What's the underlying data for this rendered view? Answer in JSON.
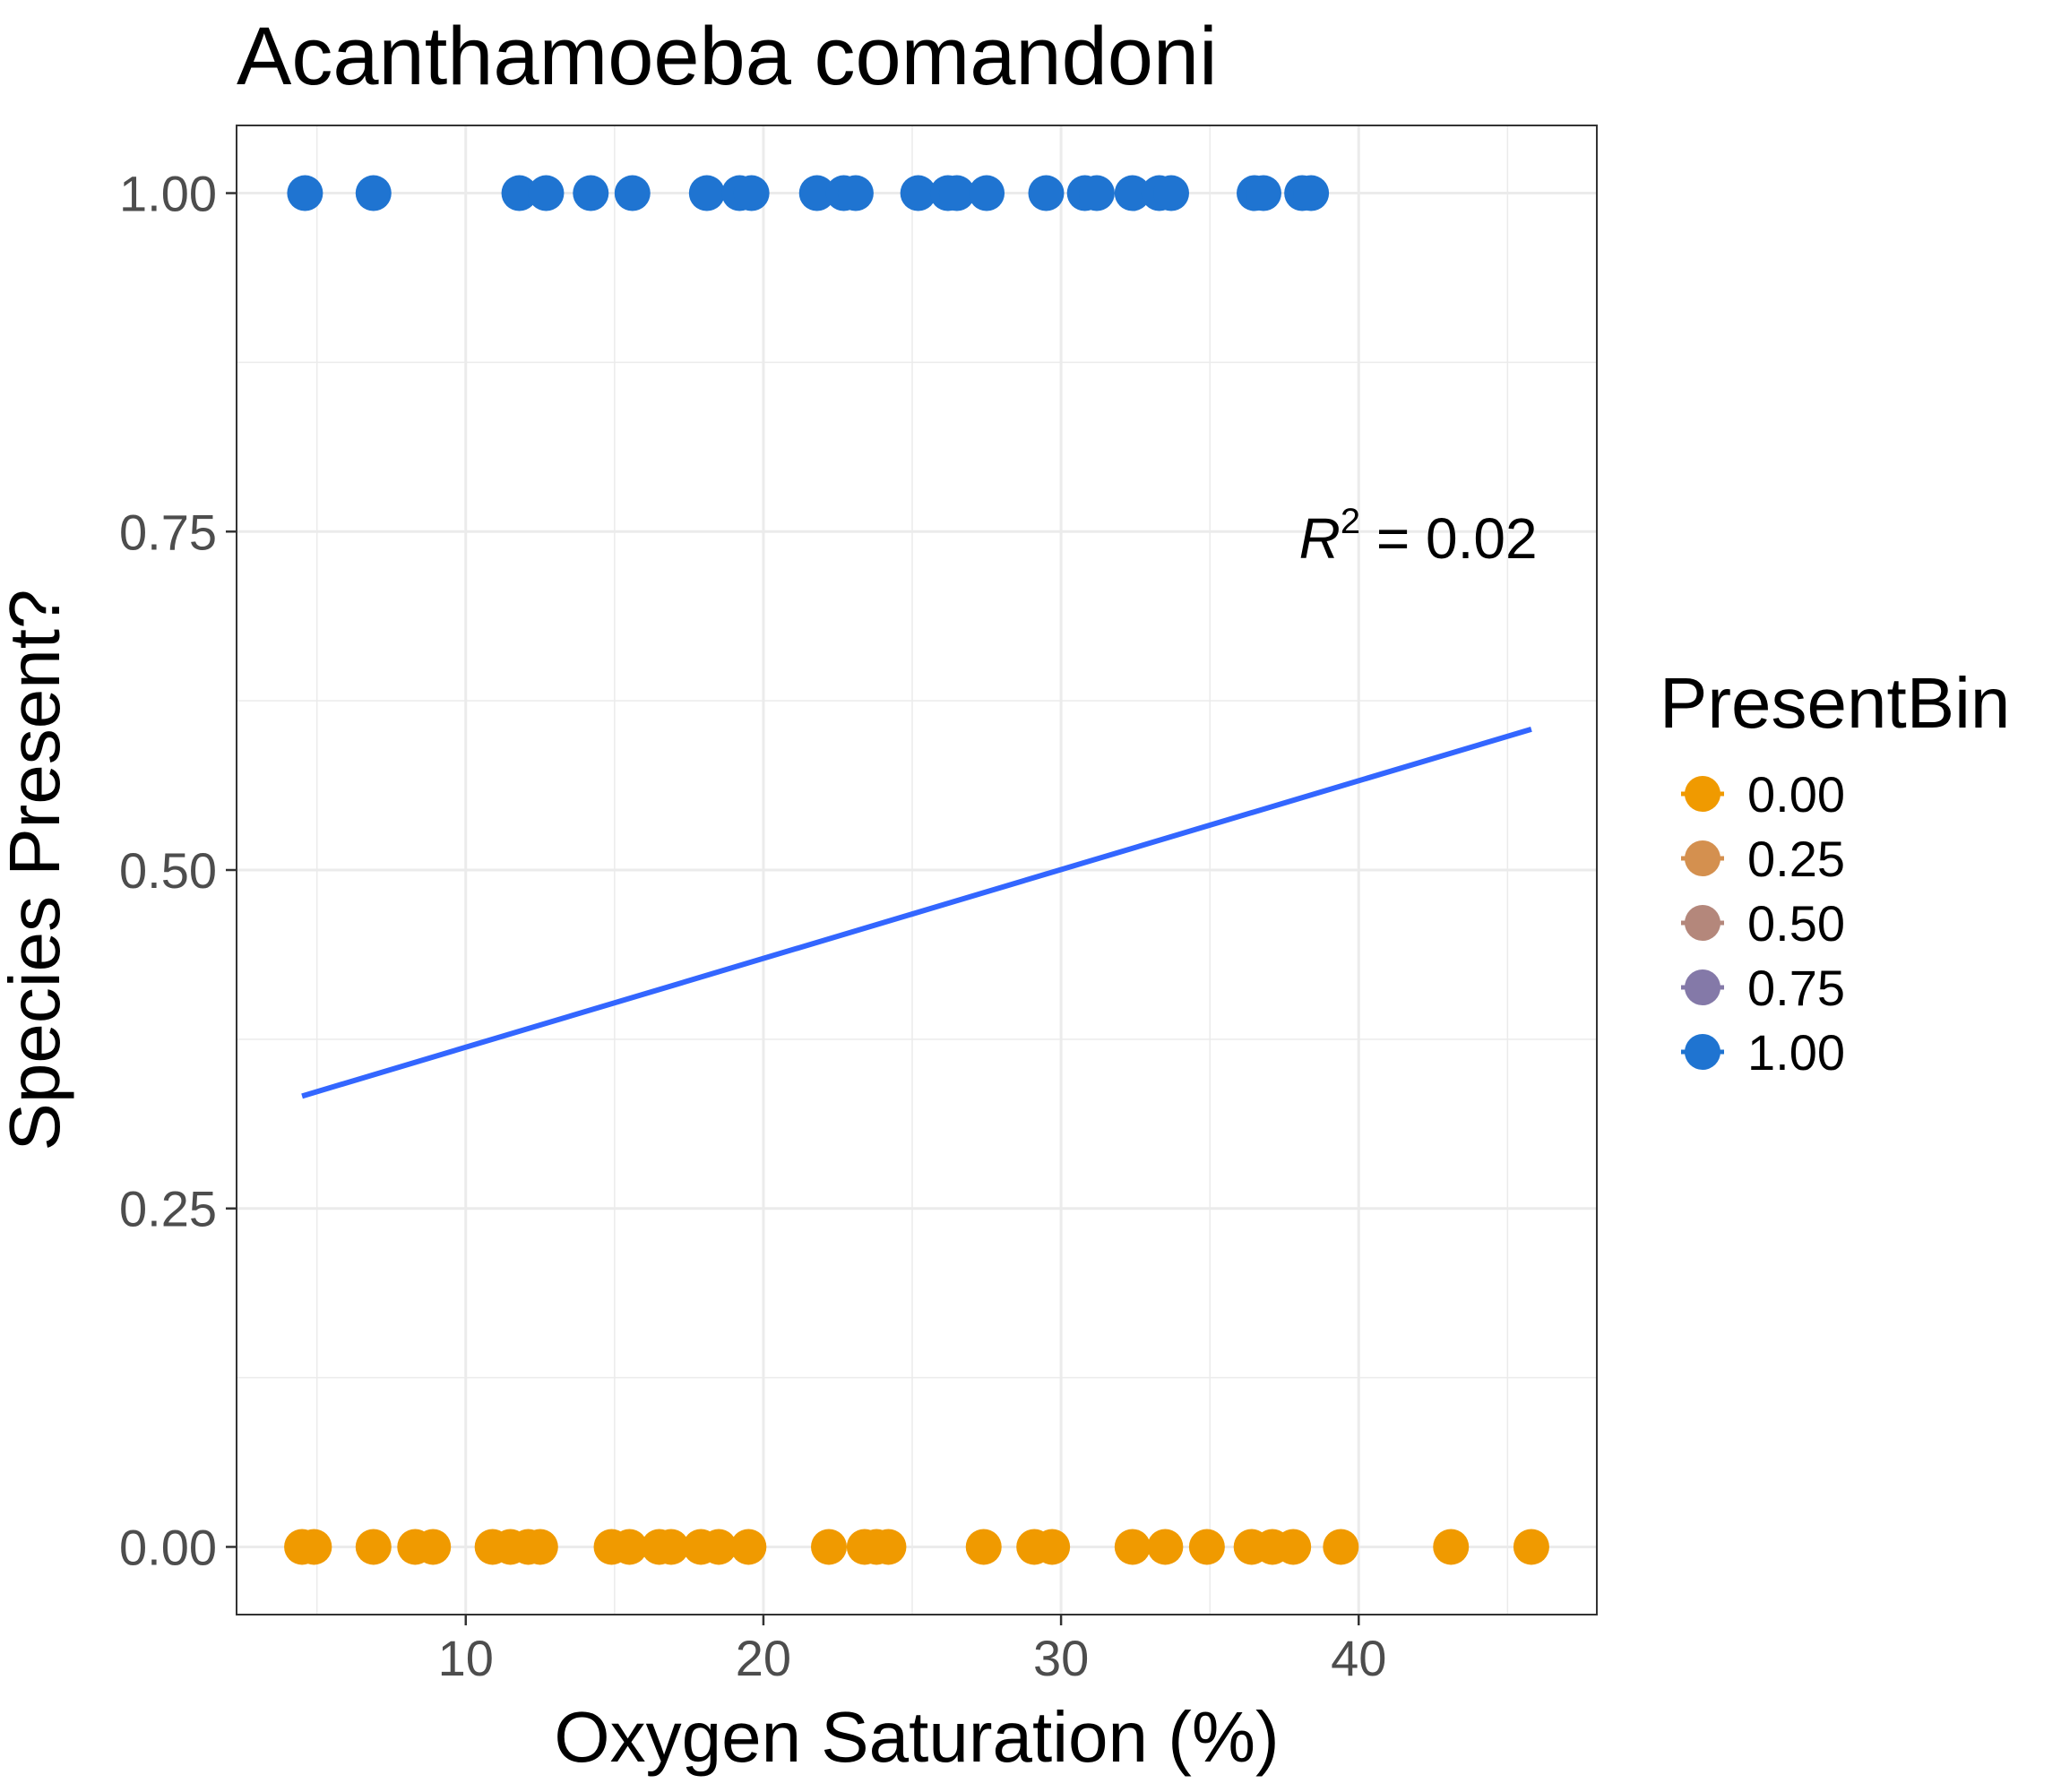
{
  "chart_data": {
    "type": "scatter",
    "title": "Acanthamoeba comandoni",
    "xlabel": "Oxygen Saturation (%)",
    "ylabel": "Species Present?",
    "xlim": [
      2.3,
      48.0
    ],
    "ylim": [
      -0.05,
      1.05
    ],
    "x_ticks": [
      10,
      20,
      30,
      40
    ],
    "x_tick_labels": [
      "10",
      "20",
      "30",
      "40"
    ],
    "y_ticks": [
      0,
      0.25,
      0.5,
      0.75,
      1.0
    ],
    "y_tick_labels": [
      "0.00",
      "0.25",
      "0.50",
      "0.75",
      "1.00"
    ],
    "grid": true,
    "annotation": {
      "lhs": "R",
      "exponent": "2",
      "rhs": " = 0.02",
      "x": 46.0,
      "y": 0.745
    },
    "fit_line": {
      "color": "#3366FF",
      "x": [
        4.5,
        45.8
      ],
      "y": [
        0.333,
        0.604
      ]
    },
    "legend": {
      "title": "PresentBin",
      "placement": "right",
      "entries": [
        {
          "label": "0.00",
          "color": "#F09A00"
        },
        {
          "label": "0.25",
          "color": "#D4904F"
        },
        {
          "label": "0.50",
          "color": "#B4877B"
        },
        {
          "label": "0.75",
          "color": "#8479A8"
        },
        {
          "label": "1.00",
          "color": "#1F74D1"
        }
      ]
    },
    "series": [
      {
        "color": "#F09A00",
        "x": [
          4.5,
          4.9,
          6.9,
          8.3,
          8.9,
          10.9,
          11.5,
          12.1,
          12.5,
          14.9,
          15.5,
          16.5,
          16.9,
          17.9,
          18.5,
          19.5,
          22.2,
          23.4,
          23.8,
          24.2,
          27.4,
          29.1,
          29.7,
          32.4,
          33.5,
          34.9,
          36.4,
          37.1,
          37.8,
          39.4,
          43.1,
          45.8
        ],
        "y": [
          0,
          0,
          0,
          0,
          0,
          0,
          0,
          0,
          0,
          0,
          0,
          0,
          0,
          0,
          0,
          0,
          0,
          0,
          0,
          0,
          0,
          0,
          0,
          0,
          0,
          0,
          0,
          0,
          0,
          0,
          0,
          0
        ]
      },
      {
        "color": "#1F74D1",
        "x": [
          4.6,
          6.9,
          11.8,
          12.7,
          14.2,
          15.6,
          18.1,
          19.2,
          19.6,
          21.8,
          22.7,
          23.1,
          25.2,
          26.2,
          26.5,
          27.5,
          29.5,
          30.8,
          31.2,
          32.4,
          33.3,
          33.7,
          36.5,
          36.8,
          38.1,
          38.4
        ],
        "y": [
          1,
          1,
          1,
          1,
          1,
          1,
          1,
          1,
          1,
          1,
          1,
          1,
          1,
          1,
          1,
          1,
          1,
          1,
          1,
          1,
          1,
          1,
          1,
          1,
          1,
          1
        ]
      }
    ]
  }
}
